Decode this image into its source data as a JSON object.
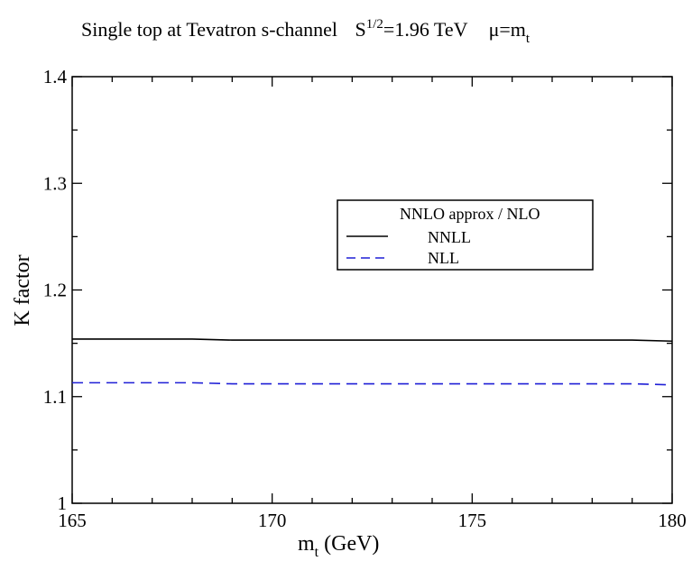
{
  "chart_data": {
    "type": "line",
    "title": {
      "main": "Single top at  Tevatron   s-channel",
      "energy_prefix": "S",
      "energy_sup": "1/2",
      "energy_rest": "=1.96 TeV",
      "scale_prefix": "μ=m",
      "scale_sub": "t"
    },
    "xlabel": {
      "main": "m",
      "sub": "t",
      "rest": " (GeV)"
    },
    "ylabel": "K factor",
    "xlim": [
      165,
      180
    ],
    "ylim": [
      1.0,
      1.4
    ],
    "xticks": [
      165,
      170,
      175,
      180
    ],
    "xtick_labels": [
      "165",
      "170",
      "175",
      "180"
    ],
    "yticks": [
      1.0,
      1.1,
      1.2,
      1.3,
      1.4
    ],
    "ytick_labels": [
      "1",
      "1.1",
      "1.2",
      "1.3",
      "1.4"
    ],
    "legend": {
      "title": "NNLO approx / NLO",
      "placement": "upper-right inside plot"
    },
    "series": [
      {
        "name": "NNLL",
        "color": "#000000",
        "dash": "solid",
        "x": [
          165,
          166,
          167,
          168,
          169,
          170,
          171,
          172,
          173,
          174,
          175,
          176,
          177,
          178,
          179,
          180
        ],
        "y": [
          1.154,
          1.154,
          1.154,
          1.154,
          1.153,
          1.153,
          1.153,
          1.153,
          1.153,
          1.153,
          1.153,
          1.153,
          1.153,
          1.153,
          1.153,
          1.152
        ]
      },
      {
        "name": "NLL",
        "color": "#1f1fd6",
        "dash": "dashed",
        "x": [
          165,
          166,
          167,
          168,
          169,
          170,
          171,
          172,
          173,
          174,
          175,
          176,
          177,
          178,
          179,
          180
        ],
        "y": [
          1.113,
          1.113,
          1.113,
          1.113,
          1.112,
          1.112,
          1.112,
          1.112,
          1.112,
          1.112,
          1.112,
          1.112,
          1.112,
          1.112,
          1.112,
          1.111
        ]
      }
    ]
  }
}
